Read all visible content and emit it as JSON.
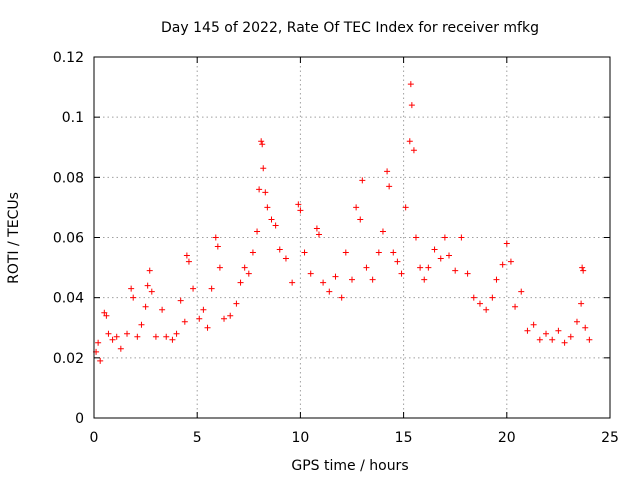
{
  "chart_data": {
    "type": "scatter",
    "title": "Day 145 of 2022, Rate Of TEC Index for receiver mfkg",
    "xlabel": "GPS time / hours",
    "ylabel": "ROTI / TECUs",
    "xlim": [
      0,
      25
    ],
    "ylim": [
      0,
      0.12
    ],
    "x_ticks": [
      0,
      5,
      10,
      15,
      20,
      25
    ],
    "y_ticks": [
      0,
      0.02,
      0.04,
      0.06,
      0.08,
      0.1,
      0.12
    ],
    "x_tick_labels": [
      "0",
      "5",
      "10",
      "15",
      "20",
      "25"
    ],
    "y_tick_labels": [
      "0",
      "0.02",
      "0.04",
      "0.06",
      "0.08",
      "0.1",
      "0.12"
    ],
    "grid": true,
    "marker": "plus",
    "color": "#ff0000",
    "series": [
      {
        "points": [
          [
            0.1,
            0.022
          ],
          [
            0.2,
            0.025
          ],
          [
            0.3,
            0.019
          ],
          [
            0.5,
            0.035
          ],
          [
            0.6,
            0.034
          ],
          [
            0.7,
            0.028
          ],
          [
            0.9,
            0.026
          ],
          [
            1.1,
            0.027
          ],
          [
            1.3,
            0.023
          ],
          [
            1.6,
            0.028
          ],
          [
            1.8,
            0.043
          ],
          [
            1.9,
            0.04
          ],
          [
            2.1,
            0.027
          ],
          [
            2.3,
            0.031
          ],
          [
            2.5,
            0.037
          ],
          [
            2.6,
            0.044
          ],
          [
            2.7,
            0.049
          ],
          [
            2.8,
            0.042
          ],
          [
            3.0,
            0.027
          ],
          [
            3.3,
            0.036
          ],
          [
            3.5,
            0.027
          ],
          [
            3.8,
            0.026
          ],
          [
            4.0,
            0.028
          ],
          [
            4.2,
            0.039
          ],
          [
            4.4,
            0.032
          ],
          [
            4.5,
            0.054
          ],
          [
            4.6,
            0.052
          ],
          [
            4.8,
            0.043
          ],
          [
            5.1,
            0.033
          ],
          [
            5.3,
            0.036
          ],
          [
            5.5,
            0.03
          ],
          [
            5.7,
            0.043
          ],
          [
            5.9,
            0.06
          ],
          [
            6.0,
            0.057
          ],
          [
            6.1,
            0.05
          ],
          [
            6.3,
            0.033
          ],
          [
            6.6,
            0.034
          ],
          [
            6.9,
            0.038
          ],
          [
            7.1,
            0.045
          ],
          [
            7.3,
            0.05
          ],
          [
            7.5,
            0.048
          ],
          [
            7.7,
            0.055
          ],
          [
            7.9,
            0.062
          ],
          [
            8.0,
            0.076
          ],
          [
            8.1,
            0.092
          ],
          [
            8.15,
            0.091
          ],
          [
            8.2,
            0.083
          ],
          [
            8.3,
            0.075
          ],
          [
            8.4,
            0.07
          ],
          [
            8.6,
            0.066
          ],
          [
            8.8,
            0.064
          ],
          [
            9.0,
            0.056
          ],
          [
            9.3,
            0.053
          ],
          [
            9.6,
            0.045
          ],
          [
            9.9,
            0.071
          ],
          [
            10.0,
            0.069
          ],
          [
            10.2,
            0.055
          ],
          [
            10.5,
            0.048
          ],
          [
            10.8,
            0.063
          ],
          [
            10.9,
            0.061
          ],
          [
            11.1,
            0.045
          ],
          [
            11.4,
            0.042
          ],
          [
            11.7,
            0.047
          ],
          [
            12.0,
            0.04
          ],
          [
            12.2,
            0.055
          ],
          [
            12.5,
            0.046
          ],
          [
            12.7,
            0.07
          ],
          [
            12.9,
            0.066
          ],
          [
            13.0,
            0.079
          ],
          [
            13.2,
            0.05
          ],
          [
            13.5,
            0.046
          ],
          [
            13.8,
            0.055
          ],
          [
            14.0,
            0.062
          ],
          [
            14.2,
            0.082
          ],
          [
            14.3,
            0.077
          ],
          [
            14.5,
            0.055
          ],
          [
            14.7,
            0.052
          ],
          [
            14.9,
            0.048
          ],
          [
            15.1,
            0.07
          ],
          [
            15.3,
            0.092
          ],
          [
            15.35,
            0.111
          ],
          [
            15.4,
            0.104
          ],
          [
            15.5,
            0.089
          ],
          [
            15.6,
            0.06
          ],
          [
            15.8,
            0.05
          ],
          [
            16.0,
            0.046
          ],
          [
            16.2,
            0.05
          ],
          [
            16.5,
            0.056
          ],
          [
            16.8,
            0.053
          ],
          [
            17.0,
            0.06
          ],
          [
            17.2,
            0.054
          ],
          [
            17.5,
            0.049
          ],
          [
            17.8,
            0.06
          ],
          [
            18.1,
            0.048
          ],
          [
            18.4,
            0.04
          ],
          [
            18.7,
            0.038
          ],
          [
            19.0,
            0.036
          ],
          [
            19.3,
            0.04
          ],
          [
            19.5,
            0.046
          ],
          [
            19.8,
            0.051
          ],
          [
            20.0,
            0.058
          ],
          [
            20.2,
            0.052
          ],
          [
            20.4,
            0.037
          ],
          [
            20.7,
            0.042
          ],
          [
            21.0,
            0.029
          ],
          [
            21.3,
            0.031
          ],
          [
            21.6,
            0.026
          ],
          [
            21.9,
            0.028
          ],
          [
            22.2,
            0.026
          ],
          [
            22.5,
            0.029
          ],
          [
            22.8,
            0.025
          ],
          [
            23.1,
            0.027
          ],
          [
            23.4,
            0.032
          ],
          [
            23.6,
            0.038
          ],
          [
            23.65,
            0.05
          ],
          [
            23.7,
            0.049
          ],
          [
            23.8,
            0.03
          ],
          [
            24.0,
            0.026
          ]
        ]
      }
    ]
  }
}
